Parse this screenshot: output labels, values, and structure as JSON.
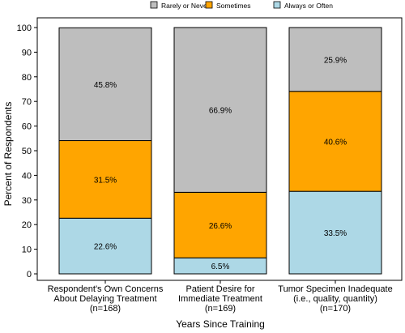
{
  "chart_data": {
    "type": "bar",
    "stacked": true,
    "categories": [
      [
        "Respondent's Own Concerns",
        "About Delaying Treatment",
        "(n=168)"
      ],
      [
        "Patient Desire for",
        "Immediate Treatment",
        "(n=169)"
      ],
      [
        "Tumor Specimen Inadequate",
        "(i.e., quality, quantity)",
        "(n=170)"
      ]
    ],
    "series": [
      {
        "name": "Always or Often",
        "color": "#add8e6",
        "values": [
          22.6,
          6.5,
          33.5
        ],
        "labels": [
          "22.6%",
          "6.5%",
          "33.5%"
        ]
      },
      {
        "name": "Sometimes",
        "color": "#ffa500",
        "values": [
          31.5,
          26.6,
          40.6
        ],
        "labels": [
          "31.5%",
          "26.6%",
          "40.6%"
        ]
      },
      {
        "name": "Rarely or Never",
        "color": "#bebebe",
        "values": [
          45.8,
          66.9,
          25.9
        ],
        "labels": [
          "45.8%",
          "66.9%",
          "25.9%"
        ]
      }
    ],
    "legend_order": [
      "Rarely or Never",
      "Sometimes",
      "Always or Often"
    ],
    "legend_position": "top",
    "xlabel": "Years Since Training",
    "ylabel": "Percent of Respondents",
    "ylim": [
      0,
      100
    ],
    "yticks": [
      0,
      10,
      20,
      30,
      40,
      50,
      60,
      70,
      80,
      90,
      100
    ],
    "grid": false
  }
}
